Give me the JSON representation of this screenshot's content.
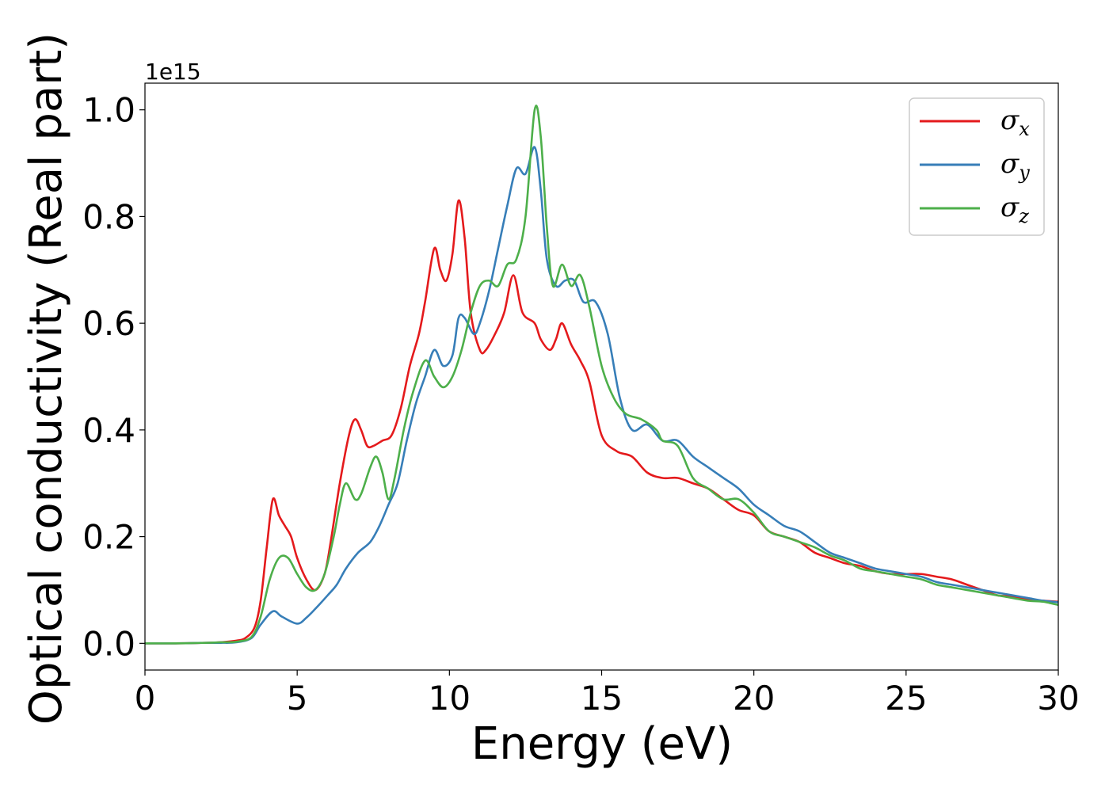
{
  "chart_data": {
    "type": "line",
    "xlabel": "Energy (eV)",
    "ylabel": "Optical conductivity (Real part)",
    "y_offset_text": "1e15",
    "xlim": [
      0,
      30
    ],
    "ylim": [
      -0.05,
      1.05
    ],
    "x_ticks": [
      0,
      5,
      10,
      15,
      20,
      25,
      30
    ],
    "x_tick_labels": [
      "0",
      "5",
      "10",
      "15",
      "20",
      "25",
      "30"
    ],
    "y_ticks": [
      0.0,
      0.2,
      0.4,
      0.6,
      0.8,
      1.0
    ],
    "y_tick_labels": [
      "0.0",
      "0.2",
      "0.4",
      "0.6",
      "0.8",
      "1.0"
    ],
    "grid": false,
    "legend_position": "top-right",
    "series": [
      {
        "name": "σ",
        "subscript": "x",
        "color": "#e41a1c",
        "points": [
          [
            0,
            0
          ],
          [
            1,
            0
          ],
          [
            2,
            0.001
          ],
          [
            2.5,
            0.002
          ],
          [
            3,
            0.005
          ],
          [
            3.3,
            0.01
          ],
          [
            3.6,
            0.03
          ],
          [
            3.8,
            0.08
          ],
          [
            4.0,
            0.18
          ],
          [
            4.2,
            0.27
          ],
          [
            4.4,
            0.24
          ],
          [
            4.6,
            0.22
          ],
          [
            4.8,
            0.2
          ],
          [
            5.0,
            0.16
          ],
          [
            5.3,
            0.12
          ],
          [
            5.6,
            0.1
          ],
          [
            5.9,
            0.13
          ],
          [
            6.1,
            0.19
          ],
          [
            6.4,
            0.3
          ],
          [
            6.7,
            0.39
          ],
          [
            6.9,
            0.42
          ],
          [
            7.1,
            0.4
          ],
          [
            7.3,
            0.37
          ],
          [
            7.5,
            0.37
          ],
          [
            7.8,
            0.38
          ],
          [
            8.1,
            0.39
          ],
          [
            8.4,
            0.44
          ],
          [
            8.7,
            0.52
          ],
          [
            9.0,
            0.58
          ],
          [
            9.2,
            0.64
          ],
          [
            9.5,
            0.74
          ],
          [
            9.7,
            0.7
          ],
          [
            9.9,
            0.68
          ],
          [
            10.1,
            0.73
          ],
          [
            10.3,
            0.83
          ],
          [
            10.5,
            0.76
          ],
          [
            10.7,
            0.62
          ],
          [
            11.0,
            0.55
          ],
          [
            11.2,
            0.55
          ],
          [
            11.5,
            0.58
          ],
          [
            11.8,
            0.62
          ],
          [
            12.1,
            0.69
          ],
          [
            12.4,
            0.62
          ],
          [
            12.8,
            0.6
          ],
          [
            13.0,
            0.57
          ],
          [
            13.3,
            0.55
          ],
          [
            13.5,
            0.57
          ],
          [
            13.7,
            0.6
          ],
          [
            14.0,
            0.56
          ],
          [
            14.3,
            0.53
          ],
          [
            14.6,
            0.49
          ],
          [
            15.0,
            0.39
          ],
          [
            15.5,
            0.36
          ],
          [
            16.0,
            0.35
          ],
          [
            16.5,
            0.32
          ],
          [
            17.0,
            0.31
          ],
          [
            17.5,
            0.31
          ],
          [
            18.0,
            0.3
          ],
          [
            18.5,
            0.29
          ],
          [
            19.0,
            0.27
          ],
          [
            19.5,
            0.25
          ],
          [
            20.0,
            0.24
          ],
          [
            20.5,
            0.21
          ],
          [
            21.0,
            0.2
          ],
          [
            21.5,
            0.19
          ],
          [
            22.0,
            0.17
          ],
          [
            22.5,
            0.16
          ],
          [
            23.0,
            0.15
          ],
          [
            23.5,
            0.145
          ],
          [
            24.0,
            0.135
          ],
          [
            24.5,
            0.13
          ],
          [
            25.0,
            0.13
          ],
          [
            25.5,
            0.13
          ],
          [
            26.0,
            0.125
          ],
          [
            26.5,
            0.12
          ],
          [
            27.0,
            0.11
          ],
          [
            27.5,
            0.1
          ],
          [
            28.0,
            0.09
          ],
          [
            28.5,
            0.088
          ],
          [
            29.0,
            0.082
          ],
          [
            29.5,
            0.08
          ],
          [
            30.0,
            0.078
          ]
        ]
      },
      {
        "name": "σ",
        "subscript": "y",
        "color": "#377eb8",
        "points": [
          [
            0,
            0
          ],
          [
            1,
            0
          ],
          [
            2,
            0.001
          ],
          [
            2.5,
            0.001
          ],
          [
            3,
            0.002
          ],
          [
            3.5,
            0.01
          ],
          [
            3.8,
            0.035
          ],
          [
            4.2,
            0.06
          ],
          [
            4.5,
            0.05
          ],
          [
            5.0,
            0.037
          ],
          [
            5.3,
            0.048
          ],
          [
            5.6,
            0.065
          ],
          [
            6.0,
            0.09
          ],
          [
            6.3,
            0.11
          ],
          [
            6.6,
            0.14
          ],
          [
            7.0,
            0.17
          ],
          [
            7.4,
            0.19
          ],
          [
            7.7,
            0.22
          ],
          [
            8.0,
            0.26
          ],
          [
            8.3,
            0.3
          ],
          [
            8.6,
            0.38
          ],
          [
            8.9,
            0.45
          ],
          [
            9.2,
            0.5
          ],
          [
            9.5,
            0.55
          ],
          [
            9.8,
            0.52
          ],
          [
            10.1,
            0.54
          ],
          [
            10.3,
            0.61
          ],
          [
            10.5,
            0.61
          ],
          [
            10.8,
            0.58
          ],
          [
            11.0,
            0.6
          ],
          [
            11.3,
            0.66
          ],
          [
            11.6,
            0.74
          ],
          [
            11.9,
            0.82
          ],
          [
            12.2,
            0.89
          ],
          [
            12.5,
            0.88
          ],
          [
            12.8,
            0.93
          ],
          [
            13.0,
            0.85
          ],
          [
            13.2,
            0.72
          ],
          [
            13.5,
            0.67
          ],
          [
            13.8,
            0.68
          ],
          [
            14.1,
            0.68
          ],
          [
            14.4,
            0.64
          ],
          [
            14.8,
            0.64
          ],
          [
            15.2,
            0.58
          ],
          [
            15.6,
            0.46
          ],
          [
            16.0,
            0.4
          ],
          [
            16.5,
            0.41
          ],
          [
            17.0,
            0.38
          ],
          [
            17.5,
            0.38
          ],
          [
            18.0,
            0.35
          ],
          [
            18.5,
            0.33
          ],
          [
            19.0,
            0.31
          ],
          [
            19.5,
            0.29
          ],
          [
            20.0,
            0.26
          ],
          [
            20.5,
            0.24
          ],
          [
            21.0,
            0.22
          ],
          [
            21.5,
            0.21
          ],
          [
            22.0,
            0.19
          ],
          [
            22.5,
            0.17
          ],
          [
            23.0,
            0.16
          ],
          [
            23.5,
            0.15
          ],
          [
            24.0,
            0.14
          ],
          [
            24.5,
            0.135
          ],
          [
            25.0,
            0.13
          ],
          [
            25.5,
            0.125
          ],
          [
            26.0,
            0.115
          ],
          [
            26.5,
            0.11
          ],
          [
            27.0,
            0.105
          ],
          [
            27.5,
            0.1
          ],
          [
            28.0,
            0.095
          ],
          [
            28.5,
            0.09
          ],
          [
            29.0,
            0.085
          ],
          [
            29.5,
            0.08
          ],
          [
            30.0,
            0.077
          ]
        ]
      },
      {
        "name": "σ",
        "subscript": "z",
        "color": "#4daf4a",
        "points": [
          [
            0,
            0
          ],
          [
            1,
            0
          ],
          [
            2,
            0.001
          ],
          [
            2.5,
            0.002
          ],
          [
            3,
            0.003
          ],
          [
            3.5,
            0.012
          ],
          [
            3.8,
            0.05
          ],
          [
            4.1,
            0.12
          ],
          [
            4.4,
            0.16
          ],
          [
            4.7,
            0.16
          ],
          [
            5.0,
            0.13
          ],
          [
            5.3,
            0.105
          ],
          [
            5.6,
            0.1
          ],
          [
            5.9,
            0.13
          ],
          [
            6.2,
            0.2
          ],
          [
            6.4,
            0.26
          ],
          [
            6.6,
            0.3
          ],
          [
            6.9,
            0.27
          ],
          [
            7.1,
            0.28
          ],
          [
            7.4,
            0.33
          ],
          [
            7.6,
            0.35
          ],
          [
            7.8,
            0.32
          ],
          [
            8.0,
            0.27
          ],
          [
            8.2,
            0.31
          ],
          [
            8.5,
            0.4
          ],
          [
            8.8,
            0.47
          ],
          [
            9.2,
            0.53
          ],
          [
            9.5,
            0.5
          ],
          [
            9.8,
            0.48
          ],
          [
            10.1,
            0.5
          ],
          [
            10.4,
            0.55
          ],
          [
            10.7,
            0.62
          ],
          [
            11.0,
            0.67
          ],
          [
            11.3,
            0.68
          ],
          [
            11.6,
            0.67
          ],
          [
            11.9,
            0.71
          ],
          [
            12.2,
            0.72
          ],
          [
            12.5,
            0.8
          ],
          [
            12.8,
            1.0
          ],
          [
            13.0,
            0.95
          ],
          [
            13.2,
            0.78
          ],
          [
            13.4,
            0.67
          ],
          [
            13.7,
            0.71
          ],
          [
            14.0,
            0.67
          ],
          [
            14.3,
            0.69
          ],
          [
            14.6,
            0.63
          ],
          [
            15.0,
            0.52
          ],
          [
            15.4,
            0.46
          ],
          [
            15.8,
            0.43
          ],
          [
            16.3,
            0.42
          ],
          [
            16.8,
            0.4
          ],
          [
            17.0,
            0.38
          ],
          [
            17.5,
            0.37
          ],
          [
            18.0,
            0.31
          ],
          [
            18.5,
            0.29
          ],
          [
            19.0,
            0.27
          ],
          [
            19.5,
            0.27
          ],
          [
            20.0,
            0.245
          ],
          [
            20.5,
            0.21
          ],
          [
            21.0,
            0.2
          ],
          [
            21.5,
            0.19
          ],
          [
            22.0,
            0.18
          ],
          [
            22.5,
            0.165
          ],
          [
            23.0,
            0.155
          ],
          [
            23.5,
            0.14
          ],
          [
            24.0,
            0.135
          ],
          [
            24.5,
            0.13
          ],
          [
            25.0,
            0.125
          ],
          [
            25.5,
            0.12
          ],
          [
            26.0,
            0.11
          ],
          [
            26.5,
            0.105
          ],
          [
            27.0,
            0.1
          ],
          [
            27.5,
            0.095
          ],
          [
            28.0,
            0.09
          ],
          [
            28.5,
            0.085
          ],
          [
            29.0,
            0.08
          ],
          [
            29.5,
            0.078
          ],
          [
            30.0,
            0.072
          ]
        ]
      }
    ]
  }
}
